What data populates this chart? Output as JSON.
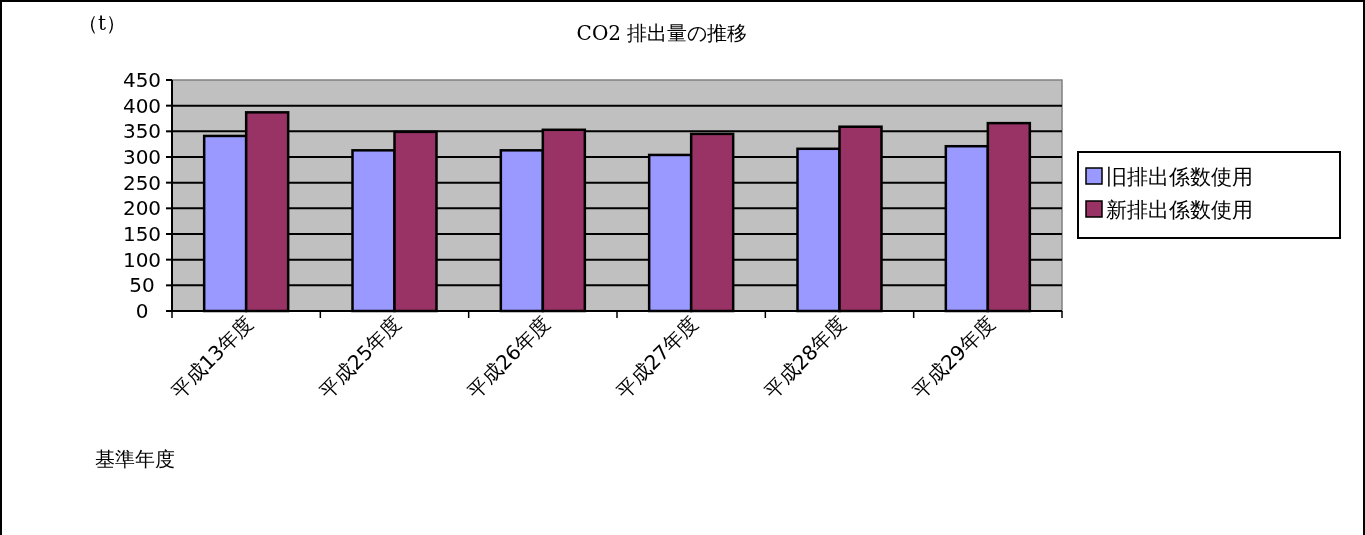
{
  "chart_data": {
    "type": "bar",
    "title": "CO2 排出量の推移",
    "ylabel": "（t）",
    "xlabel": "基準年度",
    "categories": [
      "平成13年度",
      "平成25年度",
      "平成26年度",
      "平成27年度",
      "平成28年度",
      "平成29年度"
    ],
    "series": [
      {
        "name": "旧排出係数使用",
        "color": "#9999ff",
        "values": [
          341,
          313,
          313,
          304,
          316,
          321
        ]
      },
      {
        "name": "新排出係数使用",
        "color": "#993366",
        "values": [
          387,
          349,
          353,
          345,
          359,
          366
        ]
      }
    ],
    "ylim": [
      0,
      450
    ],
    "yticks": [
      0,
      50,
      100,
      150,
      200,
      250,
      300,
      350,
      400,
      450
    ],
    "grid": "y",
    "legend": "right"
  }
}
